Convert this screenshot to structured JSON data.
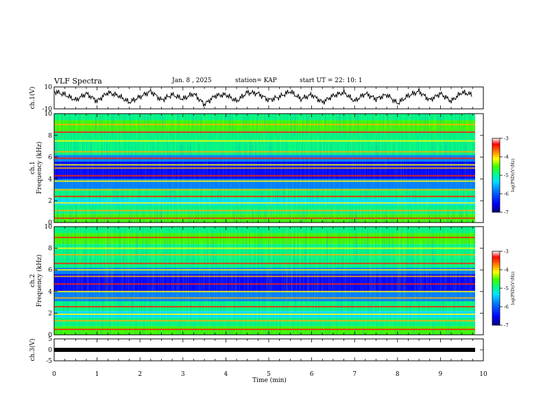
{
  "header": {
    "title": "VLF Spectra",
    "date": "Jan. 8 , 2025",
    "station": "station= KAP",
    "start_ut": "start UT = 22: 10: 1"
  },
  "chart_data": [
    {
      "type": "line",
      "panel": "ch1-waveform",
      "ylabel": "ch.1(V)",
      "ylim": [
        -10,
        10
      ],
      "yticks": [
        "10",
        "-10"
      ],
      "x": [
        0,
        0.25,
        0.5,
        0.75,
        1,
        1.25,
        1.5,
        1.75,
        2,
        2.25,
        2.5,
        2.75,
        3,
        3.25,
        3.5,
        3.75,
        4,
        4.25,
        4.5,
        4.75,
        5,
        5.25,
        5.5,
        5.75,
        6,
        6.25,
        6.5,
        6.75,
        7,
        7.25,
        7.5,
        7.75,
        8,
        8.25,
        8.5,
        8.75,
        9,
        9.25,
        9.5,
        9.75
      ],
      "y": [
        6,
        3,
        -2,
        4,
        -3,
        5,
        2,
        -4,
        1,
        6,
        -2,
        3,
        -1,
        4,
        -6,
        2,
        3,
        -3,
        5,
        4,
        -2,
        1,
        6,
        -1,
        3,
        -4,
        2,
        5,
        -3,
        4,
        -1,
        3,
        -5,
        2,
        6,
        -2,
        4,
        -3,
        5,
        3
      ],
      "color": "#000000"
    },
    {
      "type": "heatmap",
      "panel": "ch1-spectrogram",
      "ylabel": "ch.1",
      "ylabel2": "Frequency (kHz)",
      "ylim": [
        0,
        10
      ],
      "yticks": [
        "0",
        "2",
        "4",
        "6",
        "8",
        "10"
      ],
      "colorbar": {
        "label": "log(PSD)(V²/Hz)",
        "range": [
          -7,
          -3
        ],
        "ticks": [
          "-3",
          "-4",
          "-5",
          "-6",
          "-7"
        ]
      },
      "bands_khz": [
        0.4,
        1.1,
        1.8,
        2.4,
        3.0,
        3.8,
        4.3,
        5.0,
        5.3,
        5.9,
        6.5,
        7.5,
        8.3,
        9.0
      ]
    },
    {
      "type": "heatmap",
      "panel": "ch2-spectrogram",
      "ylabel": "ch.2",
      "ylabel2": "Frequency (kHz)",
      "ylim": [
        0,
        10
      ],
      "yticks": [
        "0",
        "2",
        "4",
        "6",
        "8",
        "10"
      ],
      "colorbar": {
        "label": "log(PSD)(V²/Hz)",
        "range": [
          -7,
          -3
        ],
        "ticks": [
          "-3",
          "-4",
          "-5",
          "-6",
          "-7"
        ]
      },
      "bands_khz": [
        0.5,
        1.3,
        1.9,
        2.6,
        3.4,
        4.0,
        4.7,
        5.4,
        6.0,
        6.6,
        7.4,
        8.0,
        9.0
      ]
    },
    {
      "type": "line",
      "panel": "ch3-waveform",
      "ylabel": "ch.3(V)",
      "ylim": [
        -5,
        5
      ],
      "yticks": [
        "5",
        "0",
        "-5"
      ],
      "x": [
        0,
        9.85
      ],
      "y": [
        0,
        0
      ],
      "color": "#000000"
    }
  ],
  "xaxis": {
    "label": "Time (min)",
    "ticks": [
      "0",
      "1",
      "2",
      "3",
      "4",
      "5",
      "6",
      "7",
      "8",
      "9",
      "10"
    ],
    "range": [
      0,
      10
    ]
  },
  "colors": {
    "colormap": [
      "#00007f",
      "#0000ff",
      "#007fff",
      "#00e5ff",
      "#00ff80",
      "#40ff00",
      "#ffff00",
      "#ff8000",
      "#ff0000",
      "#ffffff"
    ]
  }
}
